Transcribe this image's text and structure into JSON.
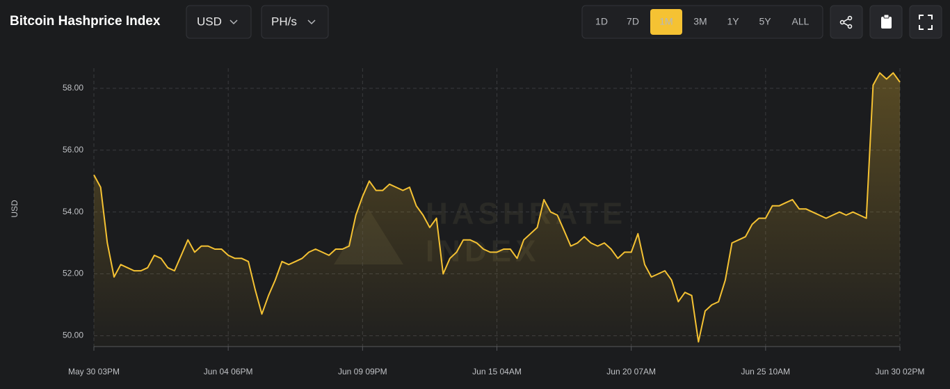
{
  "header": {
    "currency": "USD",
    "unit": "PH/s",
    "ranges": [
      "1D",
      "7D",
      "1M",
      "3M",
      "1Y",
      "5Y",
      "ALL"
    ],
    "active_range": "1M"
  },
  "chart_data": {
    "type": "line",
    "title": "Bitcoin Hashprice Index",
    "ylabel": "USD",
    "watermark": [
      "HASHRATE",
      "INDEX"
    ],
    "color": "#f5c233",
    "grid": true,
    "categories": [
      "May 30 03PM",
      null,
      null,
      null,
      null,
      null,
      null,
      null,
      null,
      null,
      null,
      null,
      null,
      null,
      null,
      null,
      null,
      null,
      null,
      null,
      "Jun 04 06PM",
      null,
      null,
      null,
      null,
      null,
      null,
      null,
      null,
      null,
      null,
      null,
      null,
      null,
      null,
      null,
      null,
      null,
      null,
      null,
      "Jun 09 09PM",
      null,
      null,
      null,
      null,
      null,
      null,
      null,
      null,
      null,
      null,
      null,
      null,
      null,
      null,
      null,
      null,
      null,
      null,
      null,
      "Jun 15 04AM",
      null,
      null,
      null,
      null,
      null,
      null,
      null,
      null,
      null,
      null,
      null,
      null,
      null,
      null,
      null,
      null,
      null,
      null,
      null,
      "Jun 20 07AM",
      null,
      null,
      null,
      null,
      null,
      null,
      null,
      null,
      null,
      null,
      null,
      null,
      null,
      null,
      null,
      null,
      null,
      null,
      null,
      "Jun 25 10AM",
      null,
      null,
      null,
      null,
      null,
      null,
      null,
      null,
      null,
      null,
      null,
      null,
      null,
      null,
      null,
      null,
      null,
      null,
      null,
      "Jun 30 02PM"
    ],
    "values": [
      55.2,
      54.8,
      53.0,
      51.9,
      52.3,
      52.2,
      52.1,
      52.1,
      52.2,
      52.6,
      52.5,
      52.2,
      52.1,
      52.6,
      53.1,
      52.7,
      52.9,
      52.9,
      52.8,
      52.8,
      52.6,
      52.5,
      52.5,
      52.4,
      51.5,
      50.7,
      51.3,
      51.8,
      52.4,
      52.3,
      52.4,
      52.5,
      52.7,
      52.8,
      52.7,
      52.6,
      52.8,
      52.8,
      52.9,
      53.9,
      54.5,
      55.0,
      54.7,
      54.7,
      54.9,
      54.8,
      54.7,
      54.8,
      54.2,
      53.9,
      53.5,
      53.8,
      52.0,
      52.5,
      52.7,
      53.1,
      53.1,
      53.0,
      52.8,
      52.7,
      52.7,
      52.8,
      52.8,
      52.5,
      53.1,
      53.3,
      53.5,
      54.4,
      54.0,
      53.9,
      53.4,
      52.9,
      53.0,
      53.2,
      53.0,
      52.9,
      53.0,
      52.8,
      52.5,
      52.7,
      52.7,
      53.3,
      52.3,
      51.9,
      52.0,
      52.1,
      51.8,
      51.1,
      51.4,
      51.3,
      49.8,
      50.8,
      51.0,
      51.1,
      51.8,
      53.0,
      53.1,
      53.2,
      53.6,
      53.8,
      53.8,
      54.2,
      54.2,
      54.3,
      54.4,
      54.1,
      54.1,
      54.0,
      53.9,
      53.8,
      53.9,
      54.0,
      53.9,
      54.0,
      53.9,
      53.8,
      58.1,
      58.5,
      58.3,
      58.5,
      58.2
    ],
    "ylim": [
      49.65,
      58.65
    ],
    "yticks": [
      {
        "value": 50,
        "label": "50.00"
      },
      {
        "value": 52,
        "label": "52.00"
      },
      {
        "value": 54,
        "label": "54.00"
      },
      {
        "value": 56,
        "label": "56.00"
      },
      {
        "value": 58,
        "label": "58.00"
      }
    ]
  }
}
